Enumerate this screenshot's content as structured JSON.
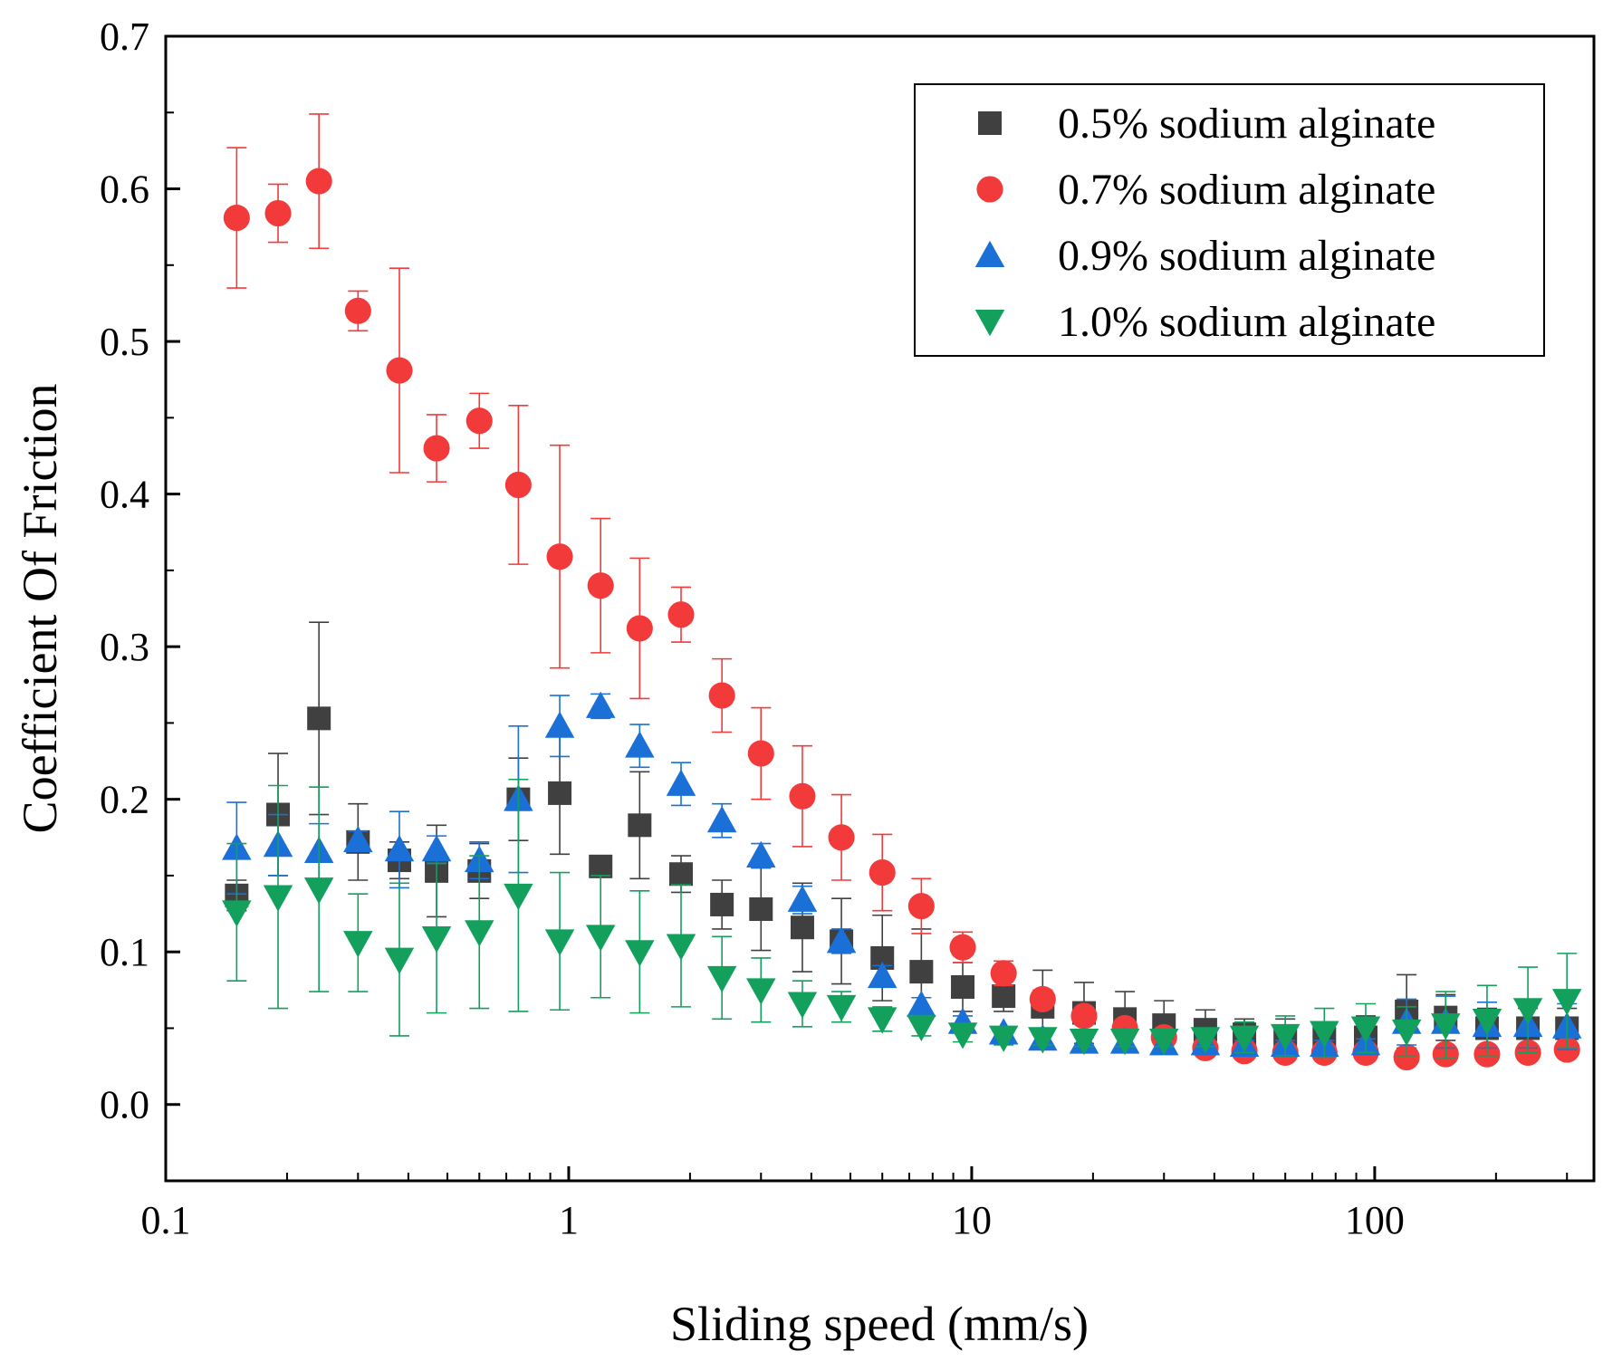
{
  "chart_data": {
    "type": "scatter",
    "title": "",
    "xlabel": "Sliding speed (mm/s)",
    "ylabel": "Coefficient Of Friction",
    "xscale": "log",
    "xlim": [
      0.1,
      350
    ],
    "ylim": [
      -0.05,
      0.7
    ],
    "x_tick_labels": [
      "0.1",
      "1",
      "10",
      "100"
    ],
    "y_tick_labels": [
      "0.0",
      "0.1",
      "0.2",
      "0.3",
      "0.4",
      "0.5",
      "0.6",
      "0.7"
    ],
    "legend_position": "top-right",
    "x": [
      0.15,
      0.19,
      0.24,
      0.3,
      0.38,
      0.47,
      0.6,
      0.75,
      0.95,
      1.2,
      1.5,
      1.9,
      2.4,
      3.0,
      3.8,
      4.75,
      6.0,
      7.5,
      9.5,
      12,
      15,
      19,
      24,
      30,
      38,
      47.5,
      60,
      75,
      95,
      120,
      150,
      190,
      240,
      300
    ],
    "series": [
      {
        "name": "0.5% sodium alginate",
        "marker": "square",
        "color": "#404040",
        "values": [
          0.137,
          0.19,
          0.253,
          0.172,
          0.16,
          0.153,
          0.153,
          0.2,
          0.204,
          0.156,
          0.183,
          0.151,
          0.131,
          0.128,
          0.116,
          0.107,
          0.096,
          0.087,
          0.077,
          0.071,
          0.064,
          0.06,
          0.056,
          0.052,
          0.049,
          0.046,
          0.044,
          0.043,
          0.044,
          0.061,
          0.057,
          0.05,
          0.05,
          0.05
        ],
        "errors": [
          0.01,
          0.04,
          0.063,
          0.025,
          0.012,
          0.03,
          0.018,
          0.027,
          0.04,
          0.006,
          0.035,
          0.012,
          0.016,
          0.027,
          0.029,
          0.028,
          0.028,
          0.028,
          0.016,
          0.01,
          0.024,
          0.02,
          0.018,
          0.016,
          0.013,
          0.01,
          0.012,
          0.01,
          0.014,
          0.024,
          0.015,
          0.013,
          0.013,
          0.013
        ]
      },
      {
        "name": "0.7% sodium alginate",
        "marker": "circle",
        "color": "#f23a3a",
        "values": [
          0.581,
          0.584,
          0.605,
          0.52,
          0.481,
          0.43,
          0.448,
          0.406,
          0.359,
          0.34,
          0.312,
          0.321,
          0.268,
          0.23,
          0.202,
          0.175,
          0.152,
          0.13,
          0.103,
          0.086,
          0.069,
          0.058,
          0.05,
          0.044,
          0.037,
          0.035,
          0.034,
          0.034,
          0.034,
          0.031,
          0.033,
          0.033,
          0.034,
          0.036
        ],
        "errors": [
          0.046,
          0.019,
          0.044,
          0.013,
          0.067,
          0.022,
          0.018,
          0.052,
          0.073,
          0.044,
          0.046,
          0.018,
          0.024,
          0.03,
          0.033,
          0.028,
          0.025,
          0.018,
          0.01,
          0.008,
          0.006,
          0.005,
          0.004,
          0.004,
          0.003,
          0.003,
          0.003,
          0.003,
          0.003,
          0.003,
          0.003,
          0.003,
          0.003,
          0.003
        ]
      },
      {
        "name": "0.9% sodium alginate",
        "marker": "triangle-up",
        "color": "#1a70d6",
        "values": [
          0.168,
          0.17,
          0.166,
          0.173,
          0.167,
          0.167,
          0.16,
          0.2,
          0.248,
          0.261,
          0.235,
          0.21,
          0.186,
          0.163,
          0.134,
          0.107,
          0.084,
          0.065,
          0.054,
          0.047,
          0.043,
          0.041,
          0.041,
          0.04,
          0.04,
          0.039,
          0.039,
          0.039,
          0.04,
          0.054,
          0.054,
          0.052,
          0.052,
          0.051
        ],
        "errors": [
          0.03,
          0.02,
          0.018,
          0.006,
          0.025,
          0.009,
          0.012,
          0.048,
          0.02,
          0.008,
          0.014,
          0.014,
          0.011,
          0.008,
          0.009,
          0.008,
          0.007,
          0.005,
          0.004,
          0.003,
          0.003,
          0.003,
          0.003,
          0.003,
          0.003,
          0.003,
          0.003,
          0.003,
          0.003,
          0.015,
          0.017,
          0.015,
          0.015,
          0.015
        ]
      },
      {
        "name": "1.0% sodium alginate",
        "marker": "triangle-down",
        "color": "#12a05c",
        "values": [
          0.126,
          0.136,
          0.141,
          0.106,
          0.095,
          0.109,
          0.113,
          0.137,
          0.107,
          0.11,
          0.1,
          0.104,
          0.083,
          0.075,
          0.066,
          0.064,
          0.056,
          0.051,
          0.046,
          0.044,
          0.043,
          0.042,
          0.042,
          0.042,
          0.043,
          0.044,
          0.045,
          0.047,
          0.05,
          0.048,
          0.052,
          0.055,
          0.062,
          0.068
        ],
        "errors": [
          0.045,
          0.073,
          0.067,
          0.032,
          0.05,
          0.049,
          0.05,
          0.076,
          0.045,
          0.04,
          0.04,
          0.04,
          0.027,
          0.021,
          0.015,
          0.01,
          0.008,
          0.006,
          0.005,
          0.005,
          0.004,
          0.004,
          0.004,
          0.004,
          0.005,
          0.01,
          0.013,
          0.016,
          0.016,
          0.016,
          0.022,
          0.023,
          0.028,
          0.031
        ]
      }
    ]
  }
}
